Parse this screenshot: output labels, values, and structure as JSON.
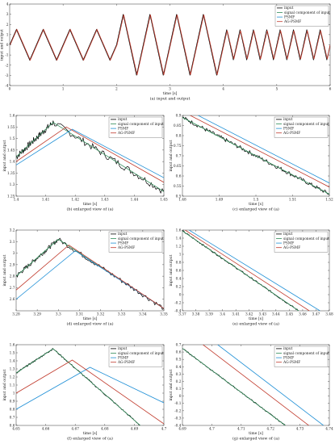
{
  "chart_data": [
    {
      "id": "a",
      "type": "line",
      "caption": "(a) input and output",
      "xlabel": "time [s]",
      "ylabel": "input and output",
      "xlim": [
        0,
        6
      ],
      "ylim": [
        -4,
        4
      ],
      "xticks": [
        0,
        1,
        2,
        3,
        4,
        5,
        6
      ],
      "xticklabels": [
        "0",
        "1",
        "2",
        "3",
        "4",
        "5",
        "6"
      ],
      "yticks": [
        -4,
        -3,
        -2,
        -1,
        0,
        1,
        2,
        3,
        4
      ],
      "yticklabels": [
        "-4",
        "-3",
        "-2",
        "-1",
        "0",
        "1",
        "2",
        "3",
        "4"
      ],
      "legend": [
        "input",
        "signal component of input",
        "PSMF",
        "AG-PSMF"
      ],
      "legend_position": "top-right",
      "grid": false,
      "series": [
        {
          "name": "input",
          "color": "#000000",
          "x": [
            0,
            0.125,
            0.375,
            0.625,
            0.875,
            1.125,
            1.375,
            1.625,
            1.875,
            2.0,
            2.125,
            2.375,
            2.625,
            2.875,
            3.125,
            3.375,
            3.625,
            3.875,
            4.0,
            4.0625,
            4.1875,
            4.3125,
            4.4375,
            4.5625,
            4.6875,
            4.8125,
            4.9375,
            5.0625,
            5.1875,
            5.3125,
            5.4375,
            5.5625,
            5.6875,
            5.8125,
            5.9375,
            6.0
          ],
          "y": [
            0,
            1.5,
            -1.5,
            1.5,
            -1.5,
            1.5,
            -1.5,
            1.5,
            -1.5,
            0,
            3,
            -3,
            3,
            -3,
            3,
            -3,
            3,
            -3,
            0,
            1.5,
            -1.5,
            1.5,
            -1.5,
            1.5,
            -1.5,
            1.5,
            -1.5,
            1.5,
            -1.5,
            1.5,
            -1.5,
            1.5,
            -1.5,
            1.5,
            -1.5,
            0
          ]
        },
        {
          "name": "AG-PSMF",
          "color": "#c0392b",
          "x": [
            0.01,
            0.135,
            0.385,
            0.635,
            0.885,
            1.135,
            1.385,
            1.635,
            1.885,
            2.01,
            2.135,
            2.385,
            2.635,
            2.885,
            3.135,
            3.385,
            3.635,
            3.885,
            4.01,
            4.0725,
            4.1975,
            4.3225,
            4.4475,
            4.5725,
            4.6975,
            4.8225,
            4.9475,
            5.0725,
            5.1975,
            5.3225,
            5.4475,
            5.5725,
            5.6975,
            5.8225,
            5.9475,
            6.0
          ],
          "y": [
            0,
            1.5,
            -1.5,
            1.5,
            -1.5,
            1.5,
            -1.5,
            1.5,
            -1.5,
            0,
            2.95,
            -2.95,
            2.95,
            -2.95,
            2.95,
            -2.95,
            2.95,
            -2.95,
            0,
            1.4,
            -1.4,
            1.4,
            -1.4,
            1.4,
            -1.4,
            1.4,
            -1.4,
            1.4,
            -1.4,
            1.4,
            -1.4,
            1.4,
            -1.4,
            1.4,
            -1.4,
            0
          ]
        }
      ]
    },
    {
      "id": "b",
      "type": "line",
      "caption": "(b) enlarged view of (a)",
      "xlabel": "time [s]",
      "ylabel": "input and output",
      "xlim": [
        1.4,
        1.45
      ],
      "ylim": [
        1.25,
        1.6
      ],
      "xticks": [
        1.4,
        1.41,
        1.42,
        1.43,
        1.44,
        1.45
      ],
      "xticklabels": [
        "1.4",
        "1.41",
        "1.42",
        "1.43",
        "1.44",
        "1.45"
      ],
      "yticks": [
        1.25,
        1.3,
        1.35,
        1.4,
        1.45,
        1.5,
        1.55,
        1.6
      ],
      "yticklabels": [
        "1.25",
        "1.3",
        "1.35",
        "1.4",
        "1.45",
        "1.5",
        "1.55",
        "1.6"
      ],
      "legend": [
        "input",
        "signal component of input",
        "PSMF",
        "AG-PSMF"
      ],
      "legend_position": "top-right",
      "grid": false,
      "series": [
        {
          "name": "input",
          "color": "#000000",
          "noise": 0.015,
          "x": [
            1.4,
            1.4125,
            1.45
          ],
          "y": [
            1.42,
            1.57,
            1.27
          ]
        },
        {
          "name": "signal component of input",
          "color": "#2e8b57",
          "x": [
            1.4,
            1.4125,
            1.45
          ],
          "y": [
            1.42,
            1.57,
            1.27
          ]
        },
        {
          "name": "PSMF",
          "color": "#1e8fd6",
          "x": [
            1.4,
            1.419,
            1.45
          ],
          "y": [
            1.385,
            1.54,
            1.33
          ]
        },
        {
          "name": "AG-PSMF",
          "color": "#c0392b",
          "x": [
            1.4,
            1.417,
            1.45
          ],
          "y": [
            1.4,
            1.55,
            1.31
          ]
        }
      ]
    },
    {
      "id": "c",
      "type": "line",
      "caption": "(c) enlarged view of (a)",
      "xlabel": "time [s]",
      "ylabel": "input and output",
      "xlim": [
        1.48,
        1.52
      ],
      "ylim": [
        0.5,
        0.9
      ],
      "xticks": [
        1.48,
        1.49,
        1.5,
        1.51,
        1.52
      ],
      "xticklabels": [
        "1.48",
        "1.49",
        "1.5",
        "1.51",
        "1.52"
      ],
      "yticks": [
        0.5,
        0.55,
        0.6,
        0.65,
        0.7,
        0.75,
        0.8,
        0.85,
        0.9
      ],
      "yticklabels": [
        "0.5",
        "0.55",
        "0.6",
        "0.65",
        "0.7",
        "0.75",
        "0.8",
        "0.85",
        "0.9"
      ],
      "legend": [
        "input",
        "signal component of input",
        "PSMF",
        "AG-PSMF"
      ],
      "legend_position": "top-right",
      "grid": false,
      "series": [
        {
          "name": "input",
          "color": "#000000",
          "noise": 0.01,
          "x": [
            1.48,
            1.52
          ],
          "y": [
            0.89,
            0.51
          ]
        },
        {
          "name": "signal component of input",
          "color": "#2e8b57",
          "x": [
            1.48,
            1.52
          ],
          "y": [
            0.89,
            0.51
          ]
        },
        {
          "name": "PSMF",
          "color": "#1e8fd6",
          "x": [
            1.48,
            1.52
          ],
          "y": [
            0.94,
            0.565
          ]
        },
        {
          "name": "AG-PSMF",
          "color": "#c0392b",
          "x": [
            1.48,
            1.52
          ],
          "y": [
            0.92,
            0.545
          ]
        }
      ]
    },
    {
      "id": "d",
      "type": "line",
      "caption": "(d) enlarged view of (a)",
      "xlabel": "time [s]",
      "ylabel": "input and output",
      "xlim": [
        3.28,
        3.35
      ],
      "ylim": [
        2.5,
        3.2
      ],
      "xticks": [
        3.28,
        3.29,
        3.3,
        3.31,
        3.32,
        3.33,
        3.34,
        3.35
      ],
      "xticklabels": [
        "3.28",
        "3.29",
        "3.3",
        "3.31",
        "3.32",
        "3.33",
        "3.34",
        "3.35"
      ],
      "yticks": [
        2.6,
        2.7,
        2.8,
        2.9,
        3,
        3.1,
        3.2
      ],
      "yticklabels": [
        "2.6",
        "2.7",
        "2.8",
        "2.9",
        "3",
        "3.1",
        "3.2"
      ],
      "legend": [
        "input",
        "signal component of input",
        "PSMF",
        "AG-PSMF"
      ],
      "legend_position": "top-right",
      "grid": false,
      "series": [
        {
          "name": "input",
          "color": "#000000",
          "noise": 0.02,
          "x": [
            3.28,
            3.3,
            3.35
          ],
          "y": [
            2.8,
            3.12,
            2.52
          ]
        },
        {
          "name": "signal component of input",
          "color": "#2e8b57",
          "x": [
            3.28,
            3.3,
            3.35
          ],
          "y": [
            2.8,
            3.12,
            2.52
          ]
        },
        {
          "name": "PSMF",
          "color": "#1e8fd6",
          "x": [
            3.28,
            3.308,
            3.35
          ],
          "y": [
            2.6,
            3.02,
            2.52
          ]
        },
        {
          "name": "AG-PSMF",
          "color": "#c0392b",
          "x": [
            3.28,
            3.305,
            3.35
          ],
          "y": [
            2.68,
            3.07,
            2.52
          ]
        }
      ]
    },
    {
      "id": "e",
      "type": "line",
      "caption": "(e) enlarged view of (a)",
      "xlabel": "time [s]",
      "ylabel": "input and output",
      "xlim": [
        3.37,
        3.48
      ],
      "ylim": [
        -0.4,
        1.6
      ],
      "xticks": [
        3.37,
        3.38,
        3.39,
        3.4,
        3.41,
        3.42,
        3.43,
        3.44,
        3.45,
        3.46,
        3.47,
        3.48
      ],
      "xticklabels": [
        "3.37",
        "3.38",
        "3.39",
        "3.4",
        "3.41",
        "3.42",
        "3.43",
        "3.44",
        "3.45",
        "3.46",
        "3.47",
        "3.48"
      ],
      "yticks": [
        -0.4,
        -0.2,
        0,
        0.2,
        0.4,
        0.6,
        0.8,
        1,
        1.2,
        1.4,
        1.6
      ],
      "yticklabels": [
        "-0.4",
        "-0.2",
        "0",
        "0.2",
        "0.4",
        "0.6",
        "0.8",
        "1",
        "1.2",
        "1.4",
        "1.6"
      ],
      "legend": [
        "input",
        "signal component of input",
        "PSMF",
        "AG-PSMF"
      ],
      "legend_position": "top-right",
      "grid": false,
      "series": [
        {
          "name": "input",
          "color": "#000000",
          "noise": 0.02,
          "x": [
            3.37,
            3.457
          ],
          "y": [
            1.58,
            -0.4
          ]
        },
        {
          "name": "signal component of input",
          "color": "#2e8b57",
          "x": [
            3.37,
            3.457
          ],
          "y": [
            1.58,
            -0.4
          ]
        },
        {
          "name": "PSMF",
          "color": "#1e8fd6",
          "x": [
            3.375,
            3.473
          ],
          "y": [
            1.6,
            -0.4
          ]
        },
        {
          "name": "AG-PSMF",
          "color": "#c0392b",
          "x": [
            3.372,
            3.465
          ],
          "y": [
            1.6,
            -0.4
          ]
        }
      ]
    },
    {
      "id": "f",
      "type": "line",
      "caption": "(f) enlarged view of (a)",
      "xlabel": "time [s]",
      "ylabel": "input and output",
      "xlim": [
        4.65,
        4.7
      ],
      "ylim": [
        0.6,
        1.6
      ],
      "xticks": [
        4.65,
        4.66,
        4.67,
        4.68,
        4.69,
        4.7
      ],
      "xticklabels": [
        "4.65",
        "4.66",
        "4.67",
        "4.68",
        "4.69",
        "4.7"
      ],
      "yticks": [
        0.6,
        0.7,
        0.8,
        0.9,
        1,
        1.1,
        1.2,
        1.3,
        1.4,
        1.5,
        1.6
      ],
      "yticklabels": [
        "0.6",
        "0.7",
        "0.8",
        "0.9",
        "1",
        "1.1",
        "1.2",
        "1.3",
        "1.4",
        "1.5",
        "1.6"
      ],
      "legend": [
        "input",
        "signal component of input",
        "PSMF",
        "AG-PSMF"
      ],
      "legend_position": "top-right",
      "grid": false,
      "series": [
        {
          "name": "input",
          "color": "#000000",
          "noise": 0.01,
          "x": [
            4.65,
            4.6625,
            4.692
          ],
          "y": [
            1.25,
            1.55,
            0.6
          ]
        },
        {
          "name": "signal component of input",
          "color": "#2e8b57",
          "x": [
            4.65,
            4.6625,
            4.692
          ],
          "y": [
            1.25,
            1.55,
            0.6
          ]
        },
        {
          "name": "PSMF",
          "color": "#1e8fd6",
          "x": [
            4.65,
            4.675,
            4.7
          ],
          "y": [
            0.8,
            1.32,
            0.88
          ]
        },
        {
          "name": "AG-PSMF",
          "color": "#c0392b",
          "x": [
            4.65,
            4.669,
            4.7
          ],
          "y": [
            1.0,
            1.41,
            0.62
          ]
        }
      ]
    },
    {
      "id": "g",
      "type": "line",
      "caption": "(g) enlarged view of (a)",
      "xlabel": "time [s]",
      "ylabel": "input and output",
      "xlim": [
        4.69,
        4.74
      ],
      "ylim": [
        -0.4,
        0.7
      ],
      "xticks": [
        4.69,
        4.7,
        4.71,
        4.72,
        4.73,
        4.74
      ],
      "xticklabels": [
        "4.69",
        "4.7",
        "4.71",
        "4.72",
        "4.73",
        "4.74"
      ],
      "yticks": [
        -0.4,
        -0.3,
        -0.2,
        -0.1,
        0,
        0.1,
        0.2,
        0.3,
        0.4,
        0.5,
        0.6,
        0.7
      ],
      "yticklabels": [
        "-0.4",
        "-0.3",
        "-0.2",
        "-0.1",
        "0",
        "0.1",
        "0.2",
        "0.3",
        "0.4",
        "0.5",
        "0.6",
        "0.7"
      ],
      "legend": [
        "input",
        "signal component of input",
        "PSMF",
        "AG-PSMF"
      ],
      "legend_position": "top-right",
      "grid": false,
      "series": [
        {
          "name": "input",
          "color": "#000000",
          "noise": 0.008,
          "x": [
            4.69,
            4.725
          ],
          "y": [
            0.65,
            -0.4
          ]
        },
        {
          "name": "signal component of input",
          "color": "#2e8b57",
          "x": [
            4.69,
            4.725
          ],
          "y": [
            0.65,
            -0.4
          ]
        },
        {
          "name": "PSMF",
          "color": "#1e8fd6",
          "x": [
            4.702,
            4.738
          ],
          "y": [
            0.7,
            -0.4
          ]
        },
        {
          "name": "AG-PSMF",
          "color": "#c0392b",
          "x": [
            4.697,
            4.733
          ],
          "y": [
            0.7,
            -0.4
          ]
        }
      ]
    }
  ]
}
